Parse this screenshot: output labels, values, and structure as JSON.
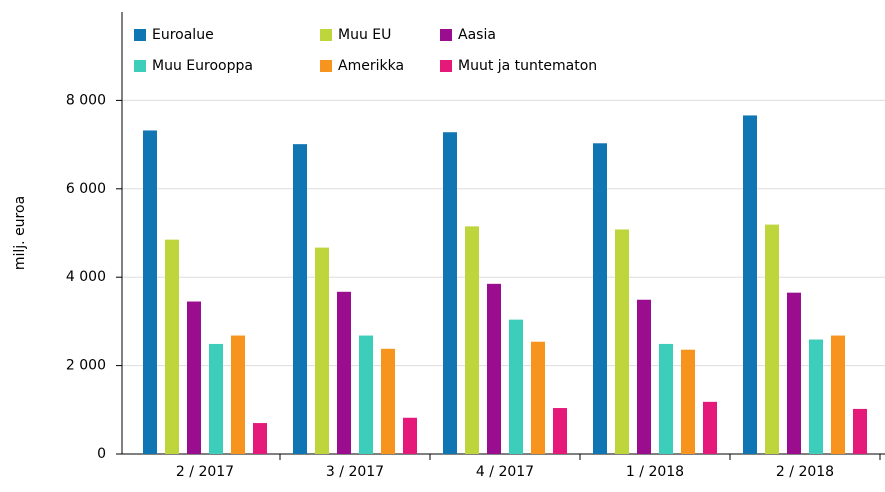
{
  "chart_data": {
    "type": "bar",
    "y_label": "milj. euroa",
    "categories": [
      "2 / 2017",
      "3 / 2017",
      "4 / 2017",
      "1 / 2018",
      "2 / 2018"
    ],
    "series": [
      {
        "name": "Euroalue",
        "color": "#0f75b3",
        "values": [
          7320,
          7010,
          7280,
          7030,
          7660
        ]
      },
      {
        "name": "Muu EU",
        "color": "#bed53c",
        "values": [
          4850,
          4670,
          5150,
          5080,
          5190
        ]
      },
      {
        "name": "Aasia",
        "color": "#9b0d8f",
        "values": [
          3450,
          3670,
          3850,
          3490,
          3650
        ]
      },
      {
        "name": "Muu Eurooppa",
        "color": "#3dcdbb",
        "values": [
          2490,
          2680,
          3040,
          2490,
          2590
        ]
      },
      {
        "name": "Amerikka",
        "color": "#f7941d",
        "values": [
          2680,
          2380,
          2540,
          2360,
          2680
        ]
      },
      {
        "name": "Muut ja tuntematon",
        "color": "#e5197a",
        "values": [
          700,
          820,
          1040,
          1180,
          1020
        ]
      }
    ],
    "ylim": [
      0,
      10000
    ],
    "yticks": [
      0,
      {
        "value": 2000,
        "label": "2 000"
      },
      {
        "value": 4000,
        "label": "4 000"
      },
      {
        "value": 6000,
        "label": "6 000"
      },
      {
        "value": 8000,
        "label": "8 000"
      }
    ],
    "grid": true,
    "legend": "top"
  }
}
